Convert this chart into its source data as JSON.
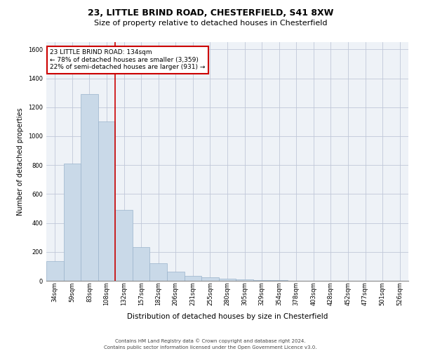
{
  "title1": "23, LITTLE BRIND ROAD, CHESTERFIELD, S41 8XW",
  "title2": "Size of property relative to detached houses in Chesterfield",
  "xlabel": "Distribution of detached houses by size in Chesterfield",
  "ylabel": "Number of detached properties",
  "footer": "Contains HM Land Registry data © Crown copyright and database right 2024.\nContains public sector information licensed under the Open Government Licence v3.0.",
  "bin_labels": [
    "34sqm",
    "59sqm",
    "83sqm",
    "108sqm",
    "132sqm",
    "157sqm",
    "182sqm",
    "206sqm",
    "231sqm",
    "255sqm",
    "280sqm",
    "305sqm",
    "329sqm",
    "354sqm",
    "378sqm",
    "403sqm",
    "428sqm",
    "452sqm",
    "477sqm",
    "501sqm",
    "526sqm"
  ],
  "bar_values": [
    135,
    810,
    1290,
    1100,
    490,
    235,
    120,
    65,
    35,
    22,
    14,
    8,
    5,
    3,
    2,
    1,
    1,
    0,
    0,
    0,
    0
  ],
  "bar_color": "#c9d9e8",
  "bar_edge_color": "#9ab4cc",
  "vline_x": 4.0,
  "vline_color": "#cc0000",
  "annotation_text": "23 LITTLE BRIND ROAD: 134sqm\n← 78% of detached houses are smaller (3,359)\n22% of semi-detached houses are larger (931) →",
  "annotation_box_color": "#cc0000",
  "ylim": [
    0,
    1650
  ],
  "yticks": [
    0,
    200,
    400,
    600,
    800,
    1000,
    1200,
    1400,
    1600
  ],
  "bg_color": "#eef2f7",
  "grid_color": "#c0c8d8",
  "title_fontsize": 9,
  "subtitle_fontsize": 8,
  "ylabel_fontsize": 7,
  "xlabel_fontsize": 7.5,
  "tick_fontsize": 6,
  "footer_fontsize": 5,
  "ann_fontsize": 6.5
}
